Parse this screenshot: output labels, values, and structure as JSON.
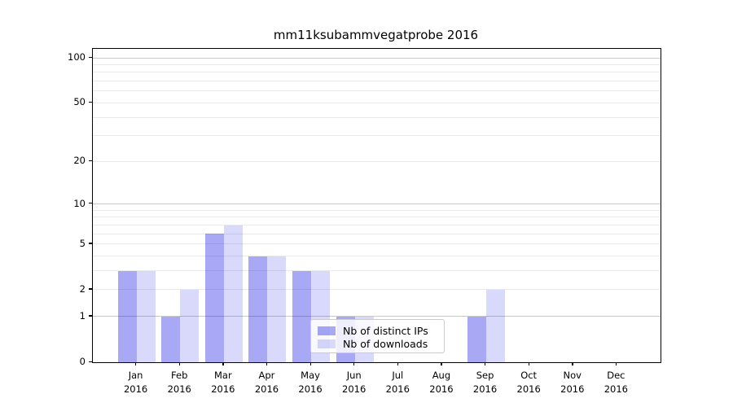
{
  "figure": {
    "background": "#ffffff"
  },
  "chart_data": {
    "type": "bar",
    "title": "mm11ksubammvegatprobe 2016",
    "xlabel": "",
    "ylabel": "",
    "year_label": "2016",
    "categories": [
      "Jan",
      "Feb",
      "Mar",
      "Apr",
      "May",
      "Jun",
      "Jul",
      "Aug",
      "Sep",
      "Oct",
      "Nov",
      "Dec"
    ],
    "series": [
      {
        "name": "Nb of distinct IPs",
        "color": "#0000e1",
        "alpha": 0.34,
        "values": [
          3,
          1,
          6,
          4,
          3,
          1,
          0,
          0,
          1,
          0,
          0,
          0
        ]
      },
      {
        "name": "Nb of downloads",
        "color": "#0000e1",
        "alpha": 0.15,
        "values": [
          3,
          2,
          7,
          4,
          3,
          1,
          0,
          0,
          2,
          0,
          0,
          0
        ]
      }
    ],
    "yscale": "log1p",
    "ylim": [
      0,
      114.7
    ],
    "ytick_values": [
      0,
      1,
      2,
      5,
      10,
      20,
      50,
      100
    ],
    "grid_major": [
      1,
      10,
      100
    ],
    "grid_minor": [
      2,
      3,
      4,
      5,
      6,
      7,
      8,
      9,
      20,
      30,
      40,
      50,
      60,
      70,
      80,
      90
    ],
    "legend_position": "lower-center",
    "grid": true
  },
  "colors": {
    "spine": "#000000",
    "grid_major": "#c9c9c9",
    "grid_minor": "#e9e9e9",
    "text": "#000000",
    "legend_border": "#cccccc",
    "legend_bg": "rgba(255,255,255,0.8)"
  }
}
